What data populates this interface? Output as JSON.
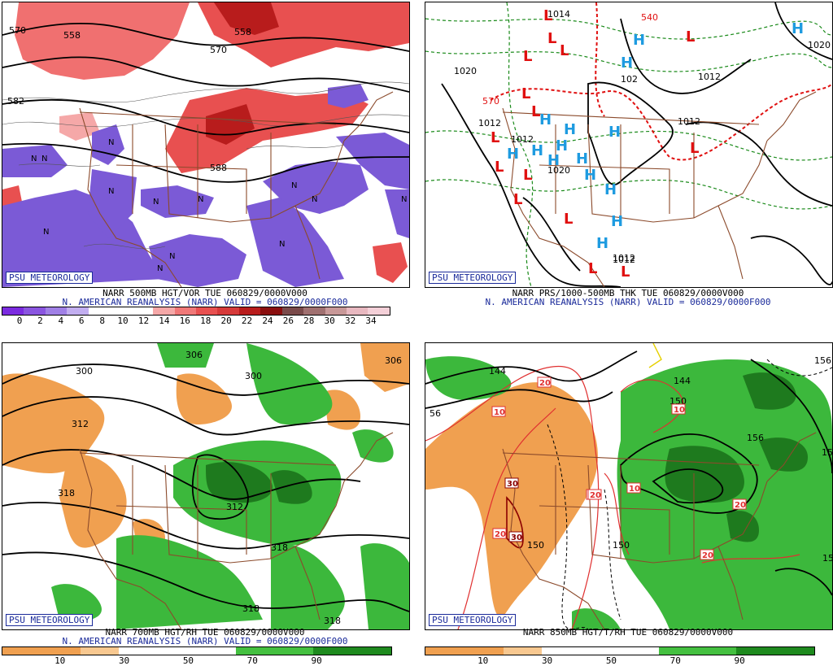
{
  "panels": [
    {
      "id": "p1",
      "badge": "PSU METEOROLOGY",
      "caption_line1": "NARR 500MB HGT/VOR TUE 060829/0000V000",
      "caption_line2": "N. AMERICAN REANALYSIS (NARR) VALID = 060829/0000F000",
      "scale_colors": [
        "#7b2be0",
        "#8a55e0",
        "#a080e6",
        "#c2aef0",
        "#ffffff",
        "#ffffff",
        "#ffffff",
        "#f5a8a8",
        "#f07878",
        "#e85050",
        "#d63a3a",
        "#b81c1c",
        "#8a0e0e",
        "#7a4a4a",
        "#a07070",
        "#c89898",
        "#e8b8c0",
        "#f4d0d8"
      ],
      "scale_labels": [
        "0",
        "2",
        "4",
        "6",
        "8",
        "10",
        "12",
        "14",
        "16",
        "18",
        "20",
        "22",
        "24",
        "26",
        "28",
        "30",
        "32",
        "34"
      ],
      "contour_labels": [
        "570",
        "558",
        "570",
        "582",
        "558",
        "588"
      ],
      "symbols": [
        "N",
        "N",
        "N",
        "N",
        "N",
        "N",
        "N",
        "N",
        "N",
        "N",
        "N",
        "N",
        "N"
      ]
    },
    {
      "id": "p2",
      "badge": "PSU METEOROLOGY",
      "caption_line1": "NARR PRS/1000-500MB THK TUE 060829/0000V000",
      "caption_line2": "N. AMERICAN REANALYSIS (NARR) VALID = 060829/0000F000",
      "contour_labels": [
        "1020",
        "1012",
        "1012",
        "1020",
        "1012",
        "1012",
        "1012",
        "1020",
        "102",
        "540",
        "570",
        "1014",
        "1012"
      ],
      "highs": [
        "H",
        "H",
        "H",
        "H",
        "H",
        "H",
        "H",
        "H",
        "H",
        "H",
        "H",
        "H",
        "H",
        "H",
        "H"
      ],
      "lows": [
        "L",
        "L",
        "L",
        "L",
        "L",
        "L",
        "L",
        "L",
        "L",
        "L",
        "L",
        "L",
        "L",
        "L",
        "L"
      ]
    },
    {
      "id": "p3",
      "badge": "PSU METEOROLOGY",
      "caption_line1": "NARR 700MB HGT/RH TUE 060829/0000V000",
      "caption_line2": "N. AMERICAN REANALYSIS (NARR) VALID = 060829/0000F000",
      "scale_colors": [
        "#f0a050",
        "#f0a050",
        "#f8c890",
        "#ffffff",
        "#ffffff",
        "#ffffff",
        "#44c040",
        "#44c040",
        "#1e8a1e",
        "#1e8a1e"
      ],
      "scale_labels": [
        "10",
        "30",
        "50",
        "70",
        "90"
      ],
      "contour_labels": [
        "300",
        "306",
        "300",
        "306",
        "312",
        "318",
        "312",
        "318",
        "318",
        "318"
      ]
    },
    {
      "id": "p4",
      "badge": "PSU METEOROLOGY",
      "caption_line1": "NARR 850MB HGT/T/RH TUE 060829/0000V000",
      "caption_line2": "",
      "scale_colors": [
        "#f0a050",
        "#f0a050",
        "#f8c890",
        "#ffffff",
        "#ffffff",
        "#ffffff",
        "#44c040",
        "#44c040",
        "#1e8a1e",
        "#1e8a1e"
      ],
      "scale_labels": [
        "10",
        "30",
        "50",
        "70",
        "90"
      ],
      "contour_labels": [
        "144",
        "150",
        "144",
        "150",
        "156",
        "150",
        "156",
        "156",
        "150",
        "156",
        "56",
        "156"
      ],
      "temp_labels": [
        "20",
        "10",
        "30",
        "20",
        "10",
        "10",
        "30",
        "20",
        "20",
        "20",
        "20"
      ]
    }
  ],
  "colors": {
    "vort_low": "#7b5ad6",
    "vort_high": "#e85858",
    "rh_dry": "#f0a050",
    "rh_moist": "#3cb83c",
    "rh_very_moist": "#1e7a1e",
    "borders": "#8b4a2b",
    "high_symbol": "#1e9be0",
    "low_symbol": "#e01010",
    "thickness": "#1a8a1a",
    "thickness_540": "#e01010",
    "isotherm": "#e03030",
    "caption_blue": "#1a2a9a"
  }
}
